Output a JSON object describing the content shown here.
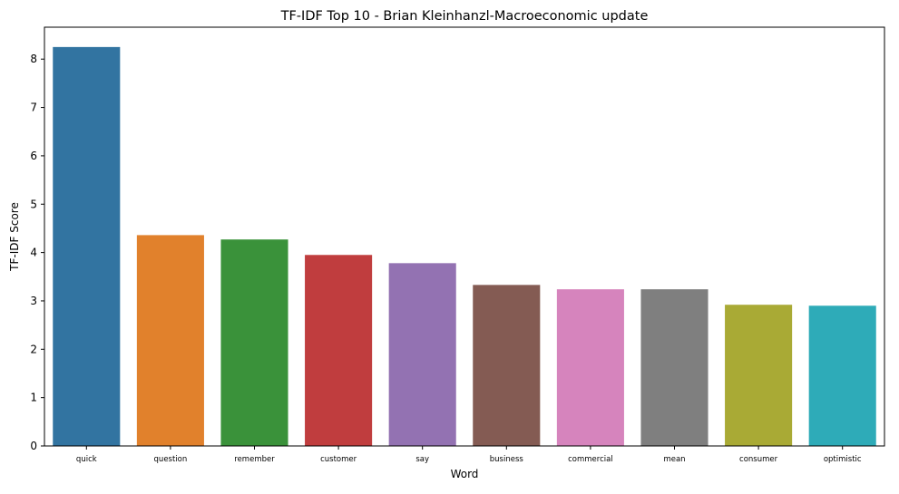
{
  "chart_data": {
    "type": "bar",
    "title": "TF-IDF Top 10 - Brian Kleinhanzl-Macroeconomic update",
    "xlabel": "Word",
    "ylabel": "TF-IDF Score",
    "categories": [
      "quick",
      "question",
      "remember",
      "customer",
      "say",
      "business",
      "commercial",
      "mean",
      "consumer",
      "optimistic"
    ],
    "values": [
      8.25,
      4.36,
      4.27,
      3.95,
      3.78,
      3.33,
      3.24,
      3.24,
      2.92,
      2.9
    ],
    "colors": [
      "#3274a1",
      "#e1812c",
      "#3a923a",
      "#c03d3e",
      "#9372b2",
      "#845b53",
      "#d684bd",
      "#7f7f7f",
      "#a9aa35",
      "#2eabb8"
    ],
    "ylim": [
      0,
      8.66
    ],
    "yticks": [
      0,
      1,
      2,
      3,
      4,
      5,
      6,
      7,
      8
    ],
    "grid": false,
    "legend": "none"
  }
}
